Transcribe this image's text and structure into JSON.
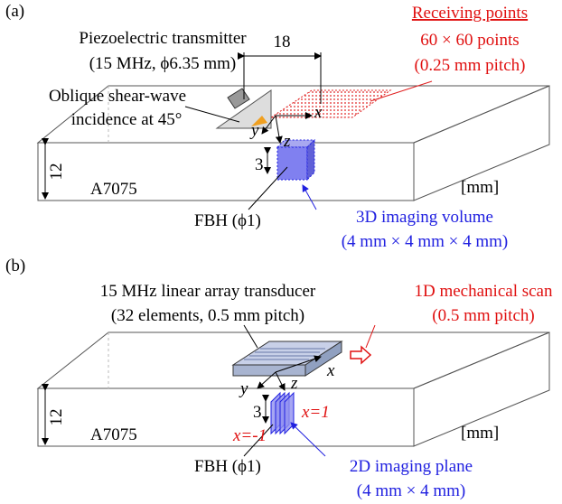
{
  "panels": [
    {
      "label": "(a)",
      "transmitter": [
        "Piezoelectric transmitter",
        "(15 MHz, ϕ6.35 mm)"
      ],
      "distance": 18,
      "receiving": {
        "title": "Receiving points",
        "lines": [
          "60 × 60 points",
          "(0.25 mm pitch)"
        ]
      },
      "incidence": [
        "Oblique shear-wave",
        "incidence at 45°"
      ],
      "axes": [
        "x",
        "y",
        "z"
      ],
      "depth": 3,
      "thickness": 12,
      "material": "A7075",
      "unit": "[mm]",
      "fbh": "FBH (ϕ1)",
      "imaging": [
        "3D imaging volume",
        "(4 mm × 4 mm × 4 mm)"
      ]
    },
    {
      "label": "(b)",
      "transducer": [
        "15 MHz linear array transducer",
        "(32 elements, 0.5 mm pitch)"
      ],
      "scan": [
        "1D mechanical scan",
        "(0.5 mm pitch)"
      ],
      "axes": [
        "x",
        "y",
        "z"
      ],
      "depth": 3,
      "thickness": 12,
      "plane_labels": [
        "x=1",
        "x=-1"
      ],
      "material": "A7075",
      "unit": "[mm]",
      "fbh": "FBH (ϕ1)",
      "imaging": [
        "2D imaging plane",
        "(4 mm × 4 mm)"
      ]
    }
  ]
}
